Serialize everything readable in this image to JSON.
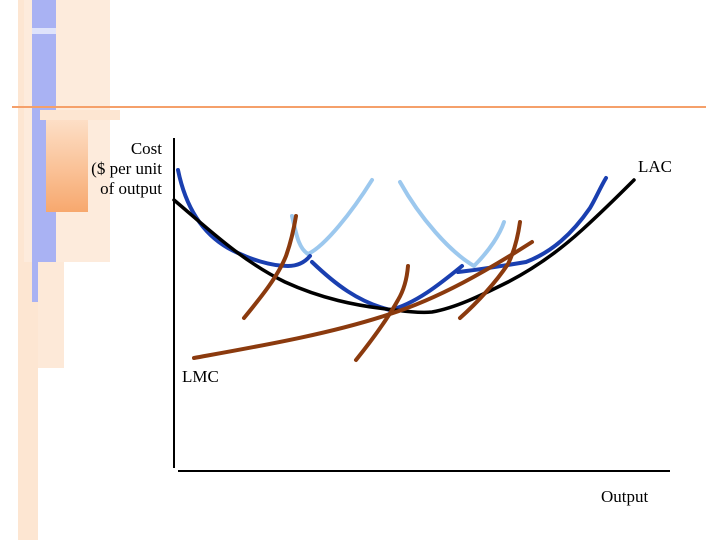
{
  "axes": {
    "y_label_lines": [
      "Cost",
      "($ per unit",
      "of output"
    ],
    "x_label": "Output"
  },
  "curve_labels": {
    "lac": "LAC",
    "lmc": "LMC"
  },
  "colors": {
    "lac": "#000000",
    "sac": "#1a3fb0",
    "smc_light": "#9cc8ee",
    "mc": "#8b3a0e",
    "slide_orange": "#f5a06a",
    "slide_blue": "#9aa6f0",
    "slide_peach": "#fde0c8"
  }
}
